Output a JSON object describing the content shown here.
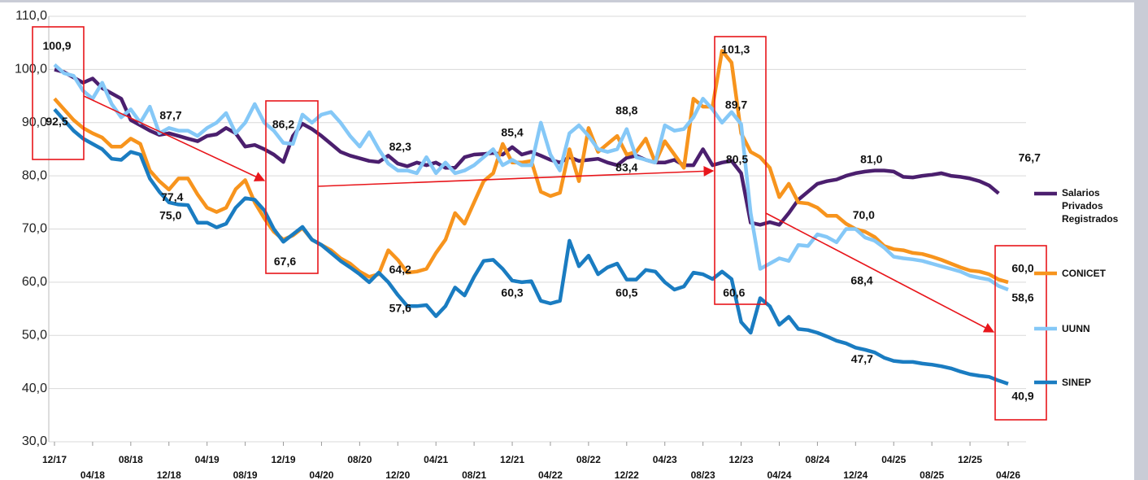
{
  "chart_data": {
    "type": "line",
    "categories": [
      "12/17",
      null,
      null,
      null,
      "04/18",
      null,
      null,
      null,
      "08/18",
      null,
      null,
      null,
      "12/18",
      null,
      null,
      null,
      "04/19",
      null,
      null,
      null,
      "08/19",
      null,
      null,
      null,
      "12/19",
      null,
      null,
      null,
      "04/20",
      null,
      null,
      null,
      "08/20",
      null,
      null,
      null,
      "12/20",
      null,
      null,
      null,
      "04/21",
      null,
      null,
      null,
      "08/21",
      null,
      null,
      null,
      "12/21",
      null,
      null,
      null,
      "04/22",
      null,
      null,
      null,
      "08/22",
      null,
      null,
      null,
      "12/22",
      null,
      null,
      null,
      "04/23",
      null,
      null,
      null,
      "08/23",
      null,
      null,
      null,
      "12/23",
      null,
      null,
      null,
      "04/24",
      null,
      null,
      null,
      "08/24",
      null,
      null,
      null,
      "12/24",
      null,
      null,
      null,
      "04/25",
      null,
      null,
      null,
      "08/25",
      null,
      null,
      null,
      "12/25",
      null,
      null,
      null,
      "04/26"
    ],
    "series": [
      {
        "name": "Salarios Privados Registrados",
        "color": "#4b1f6e",
        "values": [
          100.0,
          99.5,
          98.5,
          97.5,
          98.3,
          96.5,
          95.5,
          94.5,
          90.5,
          89.5,
          88.5,
          87.7,
          88.0,
          87.5,
          87.0,
          86.5,
          87.5,
          87.8,
          89.0,
          88.0,
          85.5,
          85.8,
          85.0,
          84.0,
          82.6,
          87.5,
          89.8,
          88.8,
          87.5,
          86.0,
          84.5,
          83.8,
          83.3,
          82.8,
          82.6,
          83.8,
          82.3,
          81.8,
          82.5,
          82.0,
          82.5,
          81.5,
          81.5,
          83.5,
          84.0,
          84.1,
          84.3,
          84.0,
          85.4,
          84.0,
          84.5,
          83.8,
          83.0,
          82.5,
          83.5,
          82.8,
          83.0,
          83.2,
          82.5,
          82.0,
          83.4,
          83.8,
          83.0,
          82.5,
          82.5,
          83.0,
          82.0,
          82.0,
          85.0,
          82.0,
          82.5,
          82.8,
          80.5,
          71.2,
          70.8,
          71.3,
          70.8,
          73.0,
          75.5,
          77.0,
          78.5,
          79.0,
          79.3,
          80.0,
          80.5,
          80.8,
          81.0,
          81.0,
          80.8,
          79.8,
          79.7,
          80.0,
          80.2,
          80.5,
          80.0,
          79.8,
          79.5,
          79.0,
          78.2,
          76.7,
          null
        ],
        "value_labels": {
          "11": "87,7",
          "36": "82,3",
          "48": "85,4",
          "60": "83,4",
          "72": "80,5",
          "86": "81,0",
          "99": "76,7"
        }
      },
      {
        "name": "CONICET",
        "color": "#f7941d",
        "values": [
          94.5,
          92.5,
          90.5,
          89.0,
          88.0,
          87.2,
          85.5,
          85.5,
          87.0,
          86.0,
          81.0,
          79.0,
          77.4,
          79.5,
          79.5,
          76.5,
          74.0,
          73.2,
          74.0,
          77.5,
          79.2,
          75.0,
          72.0,
          69.5,
          68.0,
          68.8,
          70.2,
          68.0,
          67.0,
          66.0,
          64.5,
          63.5,
          62.0,
          61.0,
          61.5,
          66.0,
          64.2,
          61.8,
          62.0,
          62.5,
          65.5,
          68.0,
          73.0,
          71.0,
          75.0,
          79.0,
          80.5,
          86.0,
          82.5,
          82.5,
          82.8,
          77.0,
          76.2,
          76.8,
          85.0,
          79.0,
          89.0,
          84.5,
          86.0,
          87.5,
          84.0,
          84.5,
          87.0,
          82.5,
          86.5,
          84.0,
          81.5,
          94.5,
          93.0,
          93.0,
          103.5,
          101.3,
          88.0,
          84.5,
          83.5,
          81.5,
          76.0,
          78.5,
          75.0,
          74.8,
          74.0,
          72.5,
          72.5,
          71.0,
          70.0,
          69.5,
          68.5,
          66.8,
          66.2,
          66.0,
          65.5,
          65.3,
          64.8,
          64.2,
          63.5,
          62.8,
          62.2,
          62.0,
          61.5,
          60.5,
          60.0
        ],
        "value_labels": {
          "12": "77,4",
          "36": "64,2",
          "71": "101,3",
          "100": "60,0"
        }
      },
      {
        "name": "UUNN",
        "color": "#85c8f7",
        "values": [
          100.9,
          99.3,
          98.8,
          96.0,
          94.5,
          97.5,
          93.5,
          91.0,
          92.5,
          90.0,
          93.0,
          88.0,
          89.0,
          88.5,
          88.5,
          87.5,
          89.0,
          90.0,
          91.8,
          88.0,
          90.0,
          93.5,
          90.0,
          88.5,
          86.2,
          86.0,
          91.5,
          90.0,
          91.5,
          92.0,
          90.0,
          87.5,
          85.5,
          88.2,
          85.0,
          82.3,
          81.0,
          81.0,
          80.5,
          83.5,
          80.5,
          82.5,
          80.5,
          81.0,
          82.0,
          83.5,
          85.0,
          82.0,
          83.0,
          82.0,
          82.0,
          90.0,
          84.0,
          81.0,
          88.0,
          89.5,
          87.5,
          85.0,
          84.5,
          85.0,
          88.8,
          83.5,
          83.0,
          82.5,
          89.5,
          88.5,
          88.8,
          91.0,
          94.5,
          92.5,
          90.0,
          92.0,
          89.7,
          73.0,
          62.5,
          63.5,
          64.5,
          64.0,
          67.0,
          66.8,
          69.0,
          68.5,
          67.5,
          70.0,
          70.0,
          68.4,
          67.8,
          66.5,
          64.8,
          64.5,
          64.3,
          64.0,
          63.5,
          63.0,
          62.5,
          62.0,
          61.2,
          60.8,
          60.5,
          59.3,
          58.6
        ],
        "value_labels": {
          "0": "100,9",
          "24": "86,2",
          "60": "88,8",
          "72": "89,7",
          "84": "70,0",
          "85": "68,4",
          "100": "58,6"
        }
      },
      {
        "name": "SINEP",
        "color": "#1a7cc1",
        "values": [
          92.5,
          90.5,
          88.5,
          87.0,
          86.0,
          85.0,
          83.2,
          83.0,
          84.5,
          84.0,
          79.5,
          77.0,
          75.0,
          74.6,
          74.5,
          71.2,
          71.2,
          70.3,
          71.0,
          74.0,
          75.8,
          75.5,
          73.5,
          70.0,
          67.6,
          69.0,
          70.4,
          68.0,
          67.0,
          65.5,
          64.0,
          62.8,
          61.5,
          60.0,
          61.8,
          60.0,
          57.6,
          55.5,
          55.5,
          55.7,
          53.6,
          55.5,
          59.0,
          57.5,
          61.0,
          64.0,
          64.2,
          62.5,
          60.3,
          60.0,
          60.2,
          56.5,
          56.0,
          56.5,
          67.8,
          63.0,
          65.0,
          61.5,
          62.8,
          63.5,
          60.5,
          60.5,
          62.3,
          62.0,
          60.0,
          58.6,
          59.2,
          61.8,
          61.5,
          60.6,
          62.0,
          60.6,
          52.5,
          50.5,
          57.0,
          55.5,
          52.0,
          53.5,
          51.2,
          51.0,
          50.5,
          49.8,
          49.0,
          48.5,
          47.7,
          47.3,
          46.8,
          45.8,
          45.2,
          45.0,
          45.0,
          44.7,
          44.5,
          44.2,
          43.8,
          43.2,
          42.7,
          42.4,
          42.2,
          41.5,
          40.9
        ],
        "value_labels": {
          "0": "92,5",
          "12": "75,0",
          "24": "67,6",
          "36": "57,6",
          "48": "60,3",
          "60": "60,5",
          "71": "60,6",
          "84": "47,7",
          "100": "40,9"
        }
      }
    ],
    "ylim": [
      30,
      110
    ],
    "yticks": [
      {
        "value": 30,
        "label": "30,0"
      },
      {
        "value": 40,
        "label": "40,0"
      },
      {
        "value": 50,
        "label": "50,0"
      },
      {
        "value": 60,
        "label": "60,0"
      },
      {
        "value": 70,
        "label": "70,0"
      },
      {
        "value": 80,
        "label": "80,0"
      },
      {
        "value": 90,
        "label": "90,0"
      },
      {
        "value": 100,
        "label": "100,0"
      },
      {
        "value": 110,
        "label": "110,0"
      }
    ],
    "grid": true,
    "legend": "right"
  }
}
